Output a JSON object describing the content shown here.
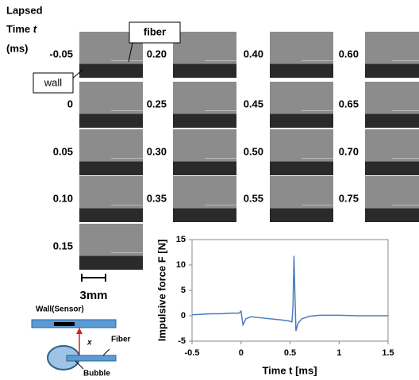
{
  "header": {
    "line1": "Lapsed",
    "line2": "Time ",
    "line2_var": "t",
    "line3": "(ms)"
  },
  "frame_columns": [
    [
      "-0.05",
      "0",
      "0.05",
      "0.10",
      "0.15"
    ],
    [
      "0.20",
      "0.25",
      "0.30",
      "0.35"
    ],
    [
      "0.40",
      "0.45",
      "0.50",
      "0.55"
    ],
    [
      "0.60",
      "0.65",
      "0.70",
      "0.75"
    ]
  ],
  "callouts": {
    "fiber": "fiber",
    "wall": "wall"
  },
  "scale_bar": "3mm",
  "diagram": {
    "wall": "Wall(Sensor)",
    "fiber": "Fiber",
    "distance": "x",
    "bubble": "Bubble"
  },
  "chart_data": {
    "type": "line",
    "x_label": "Time t [ms]",
    "y_label": "Impulsive force F [N]",
    "x": [
      -0.5,
      -0.4,
      -0.3,
      -0.2,
      -0.1,
      -0.02,
      0.0,
      0.01,
      0.02,
      0.05,
      0.1,
      0.2,
      0.3,
      0.4,
      0.48,
      0.52,
      0.53,
      0.54,
      0.55,
      0.56,
      0.58,
      0.62,
      0.7,
      0.8,
      1.0,
      1.2,
      1.4,
      1.5
    ],
    "series": [
      {
        "color": "#4a7ebb",
        "values": [
          0.2,
          0.3,
          0.4,
          0.4,
          0.5,
          0.5,
          0.9,
          -0.5,
          -1.8,
          -0.6,
          -0.2,
          -0.4,
          -0.6,
          -0.8,
          -1.0,
          -1.2,
          2,
          11.8,
          4,
          -3.0,
          -1.5,
          -0.6,
          -0.1,
          0.1,
          0.1,
          0.0,
          0.0,
          0.0
        ]
      }
    ],
    "xlim": [
      -0.5,
      1.5
    ],
    "xticks": [
      -0.5,
      0,
      0.5,
      1,
      1.5
    ],
    "ylim": [
      -5,
      15
    ],
    "yticks": [
      -5,
      0,
      5,
      10,
      15
    ]
  }
}
